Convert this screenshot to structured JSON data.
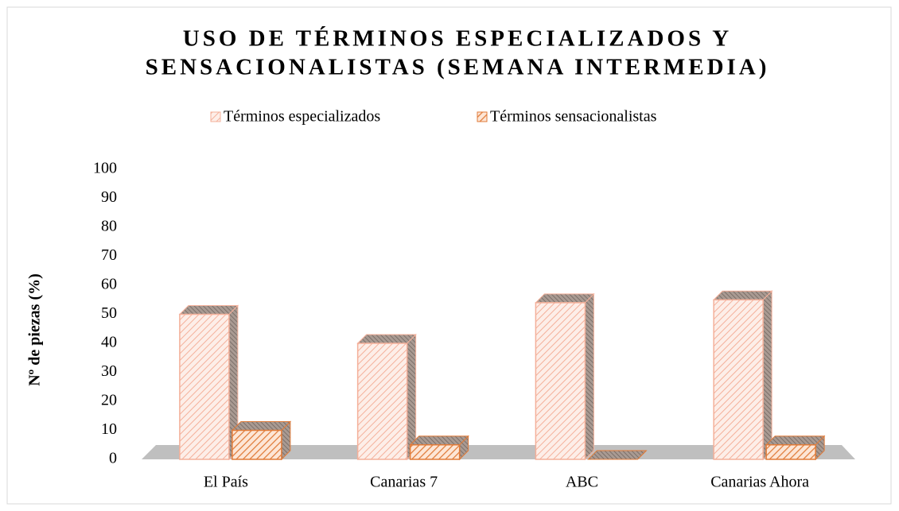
{
  "chart_data": {
    "type": "bar3d",
    "title": [
      "USO DE TÉRMINOS ESPECIALIZADOS Y",
      "SENSACIONALISTAS (SEMANA INTERMEDIA)"
    ],
    "y_label": "Nº de piezas (%)",
    "categories": [
      "El País",
      "Canarias 7",
      "ABC",
      "Canarias Ahora"
    ],
    "series": [
      {
        "name": "Términos especializados",
        "color": "#f4b09a",
        "values": [
          50,
          40,
          54,
          55
        ]
      },
      {
        "name": "Términos sensacionalistas",
        "color": "#e07b39",
        "values": [
          10,
          5,
          0,
          5
        ]
      }
    ],
    "ylim": [
      0,
      100
    ],
    "yticks": [
      0,
      10,
      20,
      30,
      40,
      50,
      60,
      70,
      80,
      90,
      100
    ],
    "legend": "top",
    "grid": false
  }
}
